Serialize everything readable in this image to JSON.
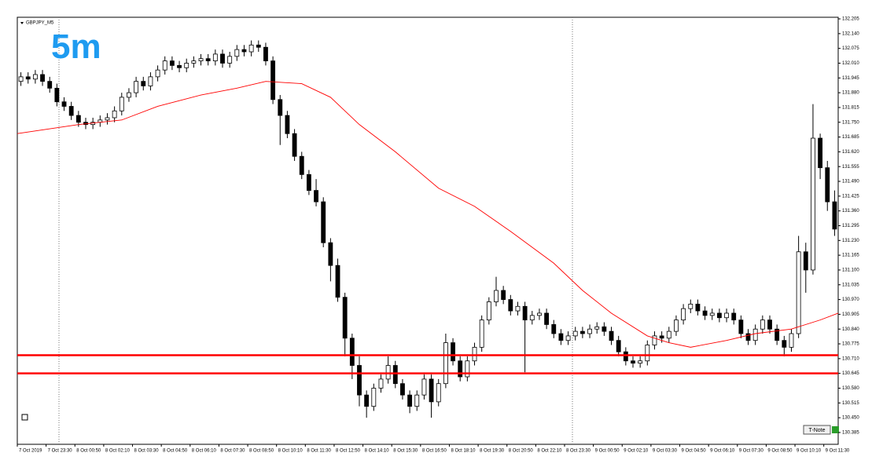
{
  "chart_data": {
    "type": "candlestick",
    "title": "GBPJPY_M5",
    "annotation": "5m",
    "button": "T-Note",
    "color": "#000000",
    "x_labels": [
      "7 Oct 2019",
      "7 Oct 23:30",
      "8 Oct 00:50",
      "8 Oct 02:10",
      "8 Oct 03:30",
      "8 Oct 04:50",
      "8 Oct 06:10",
      "8 Oct 07:30",
      "8 Oct 08:50",
      "8 Oct 10:10",
      "8 Oct 11:30",
      "8 Oct 12:50",
      "8 Oct 14:10",
      "8 Oct 15:30",
      "8 Oct 16:50",
      "8 Oct 18:10",
      "8 Oct 19:30",
      "8 Oct 20:50",
      "8 Oct 22:10",
      "8 Oct 23:30",
      "9 Oct 00:50",
      "9 Oct 02:10",
      "9 Oct 03:30",
      "9 Oct 04:50",
      "9 Oct 06:10",
      "9 Oct 07:30",
      "9 Oct 08:50",
      "9 Oct 10:10",
      "9 Oct 11:30"
    ],
    "open": [
      131.93,
      131.95,
      131.94,
      131.96,
      131.93,
      131.9,
      131.84,
      131.82,
      131.78,
      131.75,
      131.74,
      131.75,
      131.76,
      131.77,
      131.8,
      131.86,
      131.88,
      131.93,
      131.91,
      131.95,
      131.98,
      132.02,
      132.0,
      131.99,
      132.01,
      132.02,
      132.03,
      132.02,
      132.05,
      132.01,
      132.04,
      132.07,
      132.06,
      132.09,
      132.08,
      132.02,
      131.85,
      131.78,
      131.7,
      131.6,
      131.52,
      131.45,
      131.4,
      131.22,
      131.12,
      130.98,
      130.8,
      130.68,
      130.55,
      130.5,
      130.58,
      130.62,
      130.68,
      130.6,
      130.55,
      130.5,
      130.55,
      130.62,
      130.52,
      130.6,
      130.78,
      130.7,
      130.63,
      130.7,
      130.76,
      130.88,
      130.96,
      131.01,
      130.97,
      130.92,
      130.94,
      130.88,
      130.9,
      130.91,
      130.86,
      130.82,
      130.79,
      130.81,
      130.83,
      130.82,
      130.84,
      130.85,
      130.83,
      130.79,
      130.74,
      130.7,
      130.69,
      130.7,
      130.77,
      130.81,
      130.8,
      130.83,
      130.88,
      130.93,
      130.95,
      130.92,
      130.9,
      130.91,
      130.89,
      130.91,
      130.88,
      130.82,
      130.79,
      130.84,
      130.88,
      130.84,
      130.79,
      130.76,
      130.82,
      131.18,
      131.1,
      131.68,
      131.55,
      131.4
    ],
    "high": [
      131.97,
      131.97,
      131.98,
      131.98,
      131.95,
      131.92,
      131.86,
      131.84,
      131.8,
      131.77,
      131.77,
      131.78,
      131.79,
      131.82,
      131.88,
      131.9,
      131.95,
      131.95,
      131.97,
      132.0,
      132.04,
      132.04,
      132.02,
      132.03,
      132.04,
      132.05,
      132.05,
      132.07,
      132.07,
      132.06,
      132.09,
      132.09,
      132.11,
      132.11,
      132.1,
      132.04,
      131.87,
      131.8,
      131.72,
      131.62,
      131.54,
      131.5,
      131.42,
      131.24,
      131.15,
      131.0,
      130.82,
      130.72,
      130.57,
      130.6,
      130.64,
      130.72,
      130.7,
      130.62,
      130.57,
      130.57,
      130.64,
      130.64,
      130.62,
      130.82,
      130.8,
      130.72,
      130.72,
      130.78,
      130.9,
      130.98,
      131.07,
      131.03,
      130.99,
      130.96,
      130.96,
      130.92,
      130.93,
      130.93,
      130.88,
      130.84,
      130.83,
      130.85,
      130.85,
      130.86,
      130.87,
      130.87,
      130.85,
      130.81,
      130.76,
      130.72,
      130.72,
      130.79,
      130.83,
      130.83,
      130.85,
      130.9,
      130.95,
      130.97,
      130.97,
      130.94,
      130.93,
      130.93,
      130.93,
      130.93,
      130.9,
      130.84,
      130.86,
      130.9,
      130.9,
      130.86,
      130.81,
      130.84,
      131.25,
      131.22,
      131.83,
      131.7,
      131.58,
      131.45
    ],
    "low": [
      131.91,
      131.92,
      131.92,
      131.91,
      131.88,
      131.82,
      131.8,
      131.76,
      131.73,
      131.72,
      131.72,
      131.73,
      131.74,
      131.75,
      131.78,
      131.84,
      131.86,
      131.89,
      131.89,
      131.93,
      131.96,
      131.98,
      131.97,
      131.97,
      131.99,
      132.0,
      132.0,
      132.0,
      131.99,
      131.99,
      132.02,
      132.04,
      132.04,
      132.06,
      132.0,
      131.83,
      131.65,
      131.68,
      131.58,
      131.5,
      131.43,
      131.38,
      131.2,
      131.05,
      130.96,
      130.72,
      130.62,
      130.5,
      130.45,
      130.48,
      130.56,
      130.6,
      130.58,
      130.53,
      130.47,
      130.48,
      130.53,
      130.45,
      130.5,
      130.58,
      130.68,
      130.61,
      130.61,
      130.68,
      130.74,
      130.86,
      130.94,
      130.95,
      130.9,
      130.9,
      130.65,
      130.86,
      130.88,
      130.84,
      130.8,
      130.77,
      130.77,
      130.79,
      130.8,
      130.8,
      130.82,
      130.81,
      130.77,
      130.72,
      130.68,
      130.67,
      130.67,
      130.68,
      130.75,
      130.78,
      130.78,
      130.81,
      130.86,
      130.91,
      130.9,
      130.88,
      130.88,
      130.87,
      130.87,
      130.86,
      130.8,
      130.77,
      130.77,
      130.82,
      130.82,
      130.77,
      130.72,
      130.74,
      130.8,
      131.0,
      131.08,
      131.5,
      131.36,
      131.25
    ],
    "close": [
      131.95,
      131.94,
      131.96,
      131.93,
      131.9,
      131.84,
      131.82,
      131.78,
      131.75,
      131.74,
      131.75,
      131.76,
      131.77,
      131.8,
      131.86,
      131.88,
      131.93,
      131.91,
      131.95,
      131.98,
      132.02,
      132.0,
      131.99,
      132.01,
      132.02,
      132.03,
      132.02,
      132.05,
      132.01,
      132.04,
      132.07,
      132.06,
      132.09,
      132.08,
      132.02,
      131.85,
      131.78,
      131.7,
      131.6,
      131.52,
      131.45,
      131.4,
      131.22,
      131.12,
      130.98,
      130.8,
      130.68,
      130.55,
      130.5,
      130.58,
      130.62,
      130.68,
      130.6,
      130.55,
      130.5,
      130.55,
      130.62,
      130.52,
      130.6,
      130.78,
      130.7,
      130.63,
      130.7,
      130.76,
      130.88,
      130.96,
      131.01,
      130.97,
      130.92,
      130.94,
      130.88,
      130.9,
      130.91,
      130.86,
      130.82,
      130.79,
      130.81,
      130.83,
      130.82,
      130.84,
      130.85,
      130.83,
      130.79,
      130.74,
      130.7,
      130.69,
      130.7,
      130.77,
      130.81,
      130.8,
      130.83,
      130.88,
      130.93,
      130.95,
      130.92,
      130.9,
      130.91,
      130.89,
      130.91,
      130.88,
      130.82,
      130.79,
      130.84,
      130.88,
      130.84,
      130.79,
      130.76,
      130.82,
      131.18,
      131.1,
      131.68,
      131.55,
      131.4,
      131.28
    ],
    "moving_average": {
      "color": "#ff0000",
      "x": [
        -2,
        8,
        14,
        19,
        25,
        30,
        34,
        39,
        43,
        47,
        52,
        58,
        63,
        68,
        74,
        78,
        82,
        87,
        90,
        93,
        98,
        102,
        107,
        111,
        113.5
      ],
      "values": [
        131.7,
        131.74,
        131.76,
        131.82,
        131.87,
        131.9,
        131.93,
        131.92,
        131.86,
        131.74,
        131.62,
        131.46,
        131.38,
        131.27,
        131.13,
        131.01,
        130.91,
        130.81,
        130.78,
        130.76,
        130.79,
        130.82,
        130.84,
        130.88,
        130.91
      ]
    },
    "levels": {
      "color": "#ff0000",
      "values": [
        130.725,
        130.645
      ]
    },
    "ylim": [
      130.333,
      132.212
    ],
    "yticks": [
      132.205,
      {
        "value": 132.14,
        "label": "132.140"
      },
      132.075,
      {
        "value": 132.01,
        "label": "132.010"
      },
      131.945,
      {
        "value": 131.88,
        "label": "131.880"
      },
      131.815,
      {
        "value": 131.75,
        "label": "131.750"
      },
      131.685,
      {
        "value": 131.62,
        "label": "131.620"
      },
      131.555,
      {
        "value": 131.49,
        "label": "131.490"
      },
      131.425,
      {
        "value": 131.36,
        "label": "131.360"
      },
      131.295,
      {
        "value": 131.23,
        "label": "131.230"
      },
      131.165,
      {
        "value": 131.1,
        "label": "131.100"
      },
      131.035,
      {
        "value": 130.97,
        "label": "130.970"
      },
      130.905,
      {
        "value": 130.84,
        "label": "130.840"
      },
      130.775,
      {
        "value": 130.71,
        "label": "130.710"
      },
      130.645,
      {
        "value": 130.58,
        "label": "130.580"
      },
      130.515,
      {
        "value": 130.45,
        "label": "130.450"
      },
      130.385
    ]
  }
}
